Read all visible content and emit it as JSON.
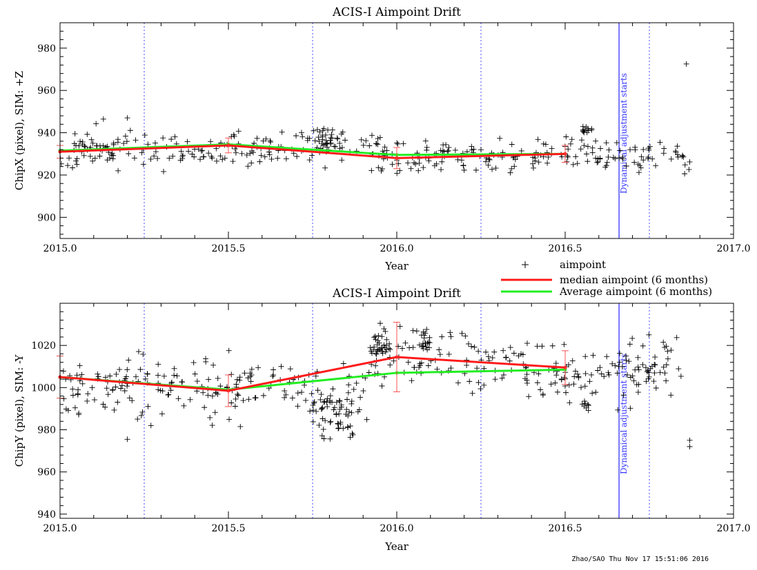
{
  "chart_data": [
    {
      "type": "scatter",
      "title": "ACIS-I Aimpoint Drift",
      "xlabel": "Year",
      "ylabel": "ChipX (pixel), SIM: +Z",
      "xlim": [
        2015.0,
        2017.0
      ],
      "ylim": [
        890,
        992
      ],
      "xticks": [
        "2015.0",
        "2015.5",
        "2016.0",
        "2016.5",
        "2017.0"
      ],
      "yticks": [
        900,
        920,
        940,
        960,
        980
      ],
      "grid": false,
      "vlines_dotted": [
        2015.25,
        2015.75,
        2016.25,
        2016.75
      ],
      "vline_event": {
        "x": 2016.66,
        "label": "Dynamical adjustment starts"
      },
      "series": [
        {
          "name": "median aimpoint (6 months)",
          "color": "#ff1a1a",
          "x": [
            2015.0,
            2015.5,
            2016.0,
            2016.5
          ],
          "y": [
            931,
            934,
            928,
            930
          ],
          "err": [
            3,
            3.5,
            5,
            4
          ]
        },
        {
          "name": "Average aimpoint (6 months)",
          "color": "#22ee22",
          "x": [
            2015.0,
            2015.5,
            2016.0,
            2016.5
          ],
          "y": [
            931.5,
            934.5,
            929.5,
            930
          ]
        }
      ],
      "scatter": {
        "name": "aimpoint",
        "seed": 11,
        "count": 380,
        "trend_x": [
          2015.0,
          2015.25,
          2015.5,
          2015.75,
          2015.88,
          2016.0,
          2016.25,
          2016.5,
          2016.87
        ],
        "trend_y": [
          931,
          932,
          933,
          934,
          934,
          928,
          928,
          929,
          929
        ],
        "spread": 4.2,
        "clusters": [
          {
            "x": [
              2016.55,
              2016.58
            ],
            "y": [
              940,
              943
            ],
            "n": 12
          },
          {
            "x": [
              2015.74,
              2015.84
            ],
            "y": [
              933,
              942
            ],
            "n": 28
          }
        ],
        "outliers": [
          [
            2015.2,
            947
          ],
          [
            2016.86,
            972.5
          ],
          [
            2015.05,
            925
          ]
        ]
      }
    },
    {
      "type": "scatter",
      "title": "ACIS-I Aimpoint Drift",
      "xlabel": "Year",
      "ylabel": "ChipY (pixel), SIM: -Y",
      "xlim": [
        2015.0,
        2017.0
      ],
      "ylim": [
        938,
        1040
      ],
      "xticks": [
        "2015.0",
        "2015.5",
        "2016.0",
        "2016.5",
        "2017.0"
      ],
      "yticks": [
        940,
        960,
        980,
        1000,
        1020
      ],
      "grid": false,
      "vlines_dotted": [
        2015.25,
        2015.75,
        2016.25,
        2016.75
      ],
      "vline_event": {
        "x": 2016.66,
        "label": "Dynamical adjustment starts"
      },
      "series": [
        {
          "name": "median aimpoint (6 months)",
          "color": "#ff1a1a",
          "x": [
            2015.0,
            2015.5,
            2016.0,
            2016.5
          ],
          "y": [
            1005,
            998.5,
            1014.5,
            1009.5
          ],
          "err": [
            10,
            7.5,
            16.5,
            8
          ]
        },
        {
          "name": "Average aimpoint (6 months)",
          "color": "#22ee22",
          "x": [
            2015.0,
            2015.5,
            2016.0,
            2016.5
          ],
          "y": [
            1005,
            999,
            1007,
            1008.5
          ]
        }
      ],
      "scatter": {
        "name": "aimpoint",
        "seed": 29,
        "count": 420,
        "trend_x": [
          2015.0,
          2015.25,
          2015.5,
          2015.7,
          2015.85,
          2015.95,
          2016.1,
          2016.3,
          2016.5,
          2016.87
        ],
        "trend_y": [
          1004,
          1000,
          999,
          1002,
          990,
          1016,
          1015,
          1010,
          1006,
          1010
        ],
        "spread": 7,
        "clusters": [
          {
            "x": [
              2015.75,
              2015.87
            ],
            "y": [
              975,
              995
            ],
            "n": 45
          },
          {
            "x": [
              2015.92,
              2015.97
            ],
            "y": [
              1015,
              1026
            ],
            "n": 25
          },
          {
            "x": [
              2016.07,
              2016.1
            ],
            "y": [
              1018,
              1029
            ],
            "n": 14
          },
          {
            "x": [
              2016.55,
              2016.57
            ],
            "y": [
              989,
              994
            ],
            "n": 8
          }
        ],
        "outliers": [
          [
            2015.2,
            975.5
          ],
          [
            2016.87,
            972
          ],
          [
            2016.87,
            975
          ],
          [
            2015.27,
            982
          ]
        ]
      }
    }
  ],
  "legend": {
    "items": [
      {
        "symbol": "+",
        "label": "aimpoint",
        "color": "#000000"
      },
      {
        "symbol": "line",
        "label": "median aimpoint (6 months)",
        "color": "#ff1a1a"
      },
      {
        "symbol": "line",
        "label": "Average aimpoint (6 months)",
        "color": "#22ee22"
      }
    ]
  },
  "footer": "Zhao/SAO Thu Nov 17 15:51:06 2016",
  "colors": {
    "points": "#000000",
    "dotted": "#6666ff",
    "event": "#3333ff",
    "axis": "#000000"
  }
}
